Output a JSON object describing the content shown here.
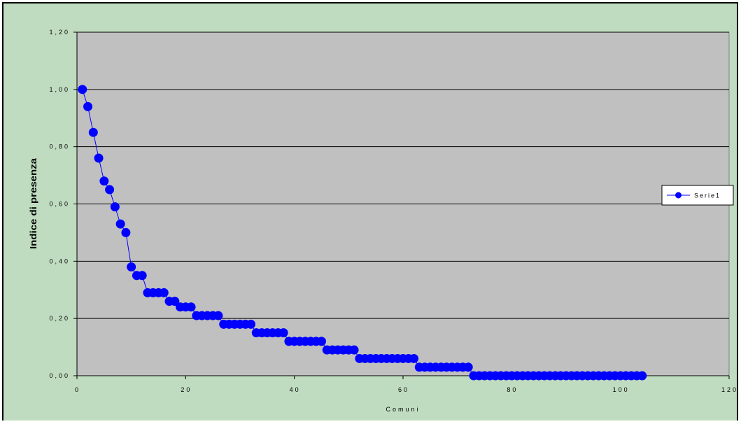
{
  "chart_data": {
    "type": "line",
    "title": "",
    "xlabel": "Comuni",
    "ylabel": "Indice di presenza",
    "xlim": [
      0,
      120
    ],
    "ylim": [
      0.0,
      1.2
    ],
    "x_ticks": [
      "0",
      "20",
      "40",
      "60",
      "80",
      "100",
      "120"
    ],
    "y_ticks": [
      "0,00",
      "0,20",
      "0,40",
      "0,60",
      "0,80",
      "1,00",
      "1,20"
    ],
    "grid": "horizontal",
    "legend_position": "right",
    "colors": {
      "frame_background": "#c0dcc0",
      "plot_background": "#c0c0c0",
      "series": "#0000ff"
    },
    "series": [
      {
        "name": "Serie1",
        "x": [
          1,
          2,
          3,
          4,
          5,
          6,
          7,
          8,
          9,
          10,
          11,
          12,
          13,
          14,
          15,
          16,
          17,
          18,
          19,
          20,
          21,
          22,
          23,
          24,
          25,
          26,
          27,
          28,
          29,
          30,
          31,
          32,
          33,
          34,
          35,
          36,
          37,
          38,
          39,
          40,
          41,
          42,
          43,
          44,
          45,
          46,
          47,
          48,
          49,
          50,
          51,
          52,
          53,
          54,
          55,
          56,
          57,
          58,
          59,
          60,
          61,
          62,
          63,
          64,
          65,
          66,
          67,
          68,
          69,
          70,
          71,
          72,
          73,
          74,
          75,
          76,
          77,
          78,
          79,
          80,
          81,
          82,
          83,
          84,
          85,
          86,
          87,
          88,
          89,
          90,
          91,
          92,
          93,
          94,
          95,
          96,
          97,
          98,
          99,
          100,
          101,
          102,
          103,
          104
        ],
        "values": [
          1.0,
          0.94,
          0.85,
          0.76,
          0.68,
          0.65,
          0.59,
          0.53,
          0.5,
          0.38,
          0.35,
          0.35,
          0.29,
          0.29,
          0.29,
          0.29,
          0.26,
          0.26,
          0.24,
          0.24,
          0.24,
          0.21,
          0.21,
          0.21,
          0.21,
          0.21,
          0.18,
          0.18,
          0.18,
          0.18,
          0.18,
          0.18,
          0.15,
          0.15,
          0.15,
          0.15,
          0.15,
          0.15,
          0.12,
          0.12,
          0.12,
          0.12,
          0.12,
          0.12,
          0.12,
          0.09,
          0.09,
          0.09,
          0.09,
          0.09,
          0.09,
          0.06,
          0.06,
          0.06,
          0.06,
          0.06,
          0.06,
          0.06,
          0.06,
          0.06,
          0.06,
          0.06,
          0.03,
          0.03,
          0.03,
          0.03,
          0.03,
          0.03,
          0.03,
          0.03,
          0.03,
          0.03,
          0.0,
          0.0,
          0.0,
          0.0,
          0.0,
          0.0,
          0.0,
          0.0,
          0.0,
          0.0,
          0.0,
          0.0,
          0.0,
          0.0,
          0.0,
          0.0,
          0.0,
          0.0,
          0.0,
          0.0,
          0.0,
          0.0,
          0.0,
          0.0,
          0.0,
          0.0,
          0.0,
          0.0,
          0.0,
          0.0,
          0.0,
          0.0
        ]
      }
    ]
  }
}
